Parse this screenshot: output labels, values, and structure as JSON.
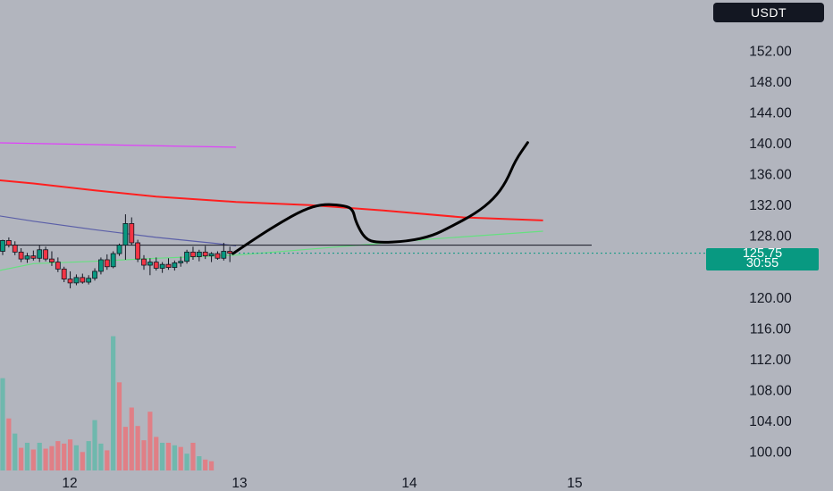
{
  "header": {
    "currency_badge": "USDT"
  },
  "price_tag": {
    "price": "125.75",
    "countdown": "30:55",
    "color": "#089981"
  },
  "colors": {
    "background": "#b2b5be",
    "up_candle": "#089981",
    "down_candle": "#f23645",
    "magenta_ma": "#e040fb",
    "red_ma": "#ff1f1f",
    "purple_ma": "#5b5fa8",
    "green_ma": "#66e080",
    "drawing": "#000000"
  },
  "chart_data": {
    "type": "candlestick",
    "y_axis": {
      "ticks": [
        "100.00",
        "104.00",
        "108.00",
        "112.00",
        "116.00",
        "120.00",
        "128.00",
        "132.00",
        "136.00",
        "140.00",
        "144.00",
        "148.00",
        "152.00"
      ],
      "visible_range": [
        98,
        155
      ]
    },
    "x_axis": {
      "ticks": [
        "12",
        "13",
        "14",
        "15"
      ]
    },
    "last_price": 125.75,
    "horizontal_level": 126.8,
    "candles": [
      [
        0,
        126.0,
        127.5,
        125.5,
        127.4
      ],
      [
        1,
        127.4,
        127.8,
        126.5,
        126.8
      ],
      [
        2,
        126.8,
        127.3,
        125.5,
        125.9
      ],
      [
        3,
        125.9,
        126.4,
        124.6,
        125.0
      ],
      [
        4,
        125.0,
        125.8,
        124.5,
        125.4
      ],
      [
        5,
        125.4,
        126.1,
        124.8,
        125.1
      ],
      [
        6,
        125.1,
        126.8,
        124.6,
        126.2
      ],
      [
        7,
        126.2,
        126.6,
        124.7,
        125.0
      ],
      [
        8,
        125.0,
        126.0,
        124.1,
        124.6
      ],
      [
        9,
        124.6,
        125.2,
        123.3,
        123.7
      ],
      [
        10,
        123.7,
        124.0,
        122.0,
        122.4
      ],
      [
        11,
        122.4,
        123.4,
        121.2,
        121.9
      ],
      [
        12,
        121.9,
        123.0,
        121.6,
        122.6
      ],
      [
        13,
        122.6,
        123.1,
        121.8,
        122.0
      ],
      [
        14,
        122.0,
        122.9,
        121.7,
        122.5
      ],
      [
        15,
        122.5,
        123.8,
        122.2,
        123.4
      ],
      [
        16,
        123.4,
        125.2,
        123.0,
        124.9
      ],
      [
        17,
        124.9,
        125.6,
        123.6,
        124.0
      ],
      [
        18,
        124.0,
        126.0,
        123.8,
        125.7
      ],
      [
        19,
        125.7,
        127.0,
        125.4,
        126.8
      ],
      [
        20,
        126.8,
        130.8,
        124.9,
        129.6
      ],
      [
        21,
        129.6,
        130.4,
        126.8,
        127.1
      ],
      [
        22,
        127.1,
        127.5,
        124.6,
        125.0
      ],
      [
        23,
        125.0,
        125.5,
        123.6,
        124.2
      ],
      [
        24,
        124.2,
        125.1,
        122.9,
        124.6
      ],
      [
        25,
        124.6,
        125.2,
        123.5,
        123.8
      ],
      [
        26,
        123.8,
        124.6,
        123.2,
        124.3
      ],
      [
        27,
        124.3,
        125.1,
        123.6,
        123.9
      ],
      [
        28,
        123.9,
        124.8,
        123.5,
        124.5
      ],
      [
        29,
        124.5,
        125.3,
        124.0,
        124.7
      ],
      [
        30,
        124.7,
        126.2,
        124.4,
        125.9
      ],
      [
        31,
        125.9,
        126.6,
        124.9,
        125.3
      ],
      [
        32,
        125.3,
        126.2,
        124.7,
        125.9
      ],
      [
        33,
        125.9,
        126.7,
        125.0,
        125.4
      ],
      [
        34,
        125.4,
        125.9,
        124.6,
        125.7
      ],
      [
        35,
        125.7,
        126.0,
        124.9,
        125.1
      ],
      [
        36,
        125.1,
        127.1,
        124.8,
        126.0
      ],
      [
        37,
        126.0,
        126.6,
        124.6,
        125.75
      ]
    ],
    "volume": [
      [
        0,
        11.0,
        "up"
      ],
      [
        1,
        6.2,
        "down"
      ],
      [
        2,
        4.4,
        "up"
      ],
      [
        3,
        2.7,
        "down"
      ],
      [
        4,
        3.3,
        "up"
      ],
      [
        5,
        2.5,
        "down"
      ],
      [
        6,
        3.3,
        "up"
      ],
      [
        7,
        2.6,
        "down"
      ],
      [
        8,
        2.9,
        "down"
      ],
      [
        9,
        3.5,
        "down"
      ],
      [
        10,
        3.2,
        "down"
      ],
      [
        11,
        3.7,
        "down"
      ],
      [
        12,
        3.0,
        "up"
      ],
      [
        13,
        2.2,
        "down"
      ],
      [
        14,
        3.5,
        "up"
      ],
      [
        15,
        6.0,
        "up"
      ],
      [
        16,
        3.2,
        "up"
      ],
      [
        17,
        2.4,
        "down"
      ],
      [
        18,
        16.0,
        "up"
      ],
      [
        19,
        10.5,
        "down"
      ],
      [
        20,
        5.2,
        "down"
      ],
      [
        21,
        7.5,
        "down"
      ],
      [
        22,
        5.3,
        "down"
      ],
      [
        23,
        3.6,
        "down"
      ],
      [
        24,
        7.0,
        "down"
      ],
      [
        25,
        4.0,
        "down"
      ],
      [
        26,
        3.3,
        "up"
      ],
      [
        27,
        3.3,
        "down"
      ],
      [
        28,
        3.0,
        "up"
      ],
      [
        29,
        2.8,
        "down"
      ],
      [
        30,
        2.0,
        "up"
      ],
      [
        31,
        3.3,
        "down"
      ],
      [
        32,
        1.7,
        "up"
      ],
      [
        33,
        1.3,
        "down"
      ],
      [
        34,
        1.1,
        "down"
      ]
    ],
    "moving_averages": [
      {
        "color_key": "magenta_ma",
        "points": [
          [
            -3,
            140.1
          ],
          [
            38,
            139.5
          ]
        ]
      },
      {
        "color_key": "red_ma",
        "points": [
          [
            -3,
            135.4
          ],
          [
            5,
            134.8
          ],
          [
            15,
            133.9
          ],
          [
            25,
            133.1
          ],
          [
            38,
            132.4
          ],
          [
            50,
            132.0
          ],
          [
            62,
            131.3
          ],
          [
            75,
            130.4
          ],
          [
            88,
            130.0
          ]
        ]
      },
      {
        "color_key": "purple_ma",
        "points": [
          [
            -3,
            130.9
          ],
          [
            5,
            129.9
          ],
          [
            15,
            128.8
          ],
          [
            25,
            127.8
          ],
          [
            35,
            127.0
          ],
          [
            38,
            126.7
          ]
        ]
      },
      {
        "color_key": "green_ma",
        "points": [
          [
            -3,
            123.1
          ],
          [
            5,
            124.4
          ],
          [
            15,
            124.7
          ],
          [
            25,
            125.1
          ],
          [
            38,
            125.5
          ],
          [
            55,
            126.6
          ],
          [
            70,
            127.6
          ],
          [
            88,
            128.6
          ]
        ]
      }
    ],
    "drawing_path": [
      [
        37.5,
        125.7
      ],
      [
        41,
        127.6
      ],
      [
        45,
        129.6
      ],
      [
        49,
        131.4
      ],
      [
        52,
        132.1
      ],
      [
        55,
        132.0
      ],
      [
        57,
        131.6
      ],
      [
        57.5,
        129.8
      ],
      [
        59,
        127.6
      ],
      [
        61,
        127.1
      ],
      [
        66,
        127.3
      ],
      [
        70,
        128.0
      ],
      [
        73,
        129.2
      ],
      [
        77,
        130.9
      ],
      [
        80,
        132.8
      ],
      [
        82,
        135.0
      ],
      [
        83.5,
        137.8
      ],
      [
        85.5,
        140.1
      ]
    ]
  }
}
